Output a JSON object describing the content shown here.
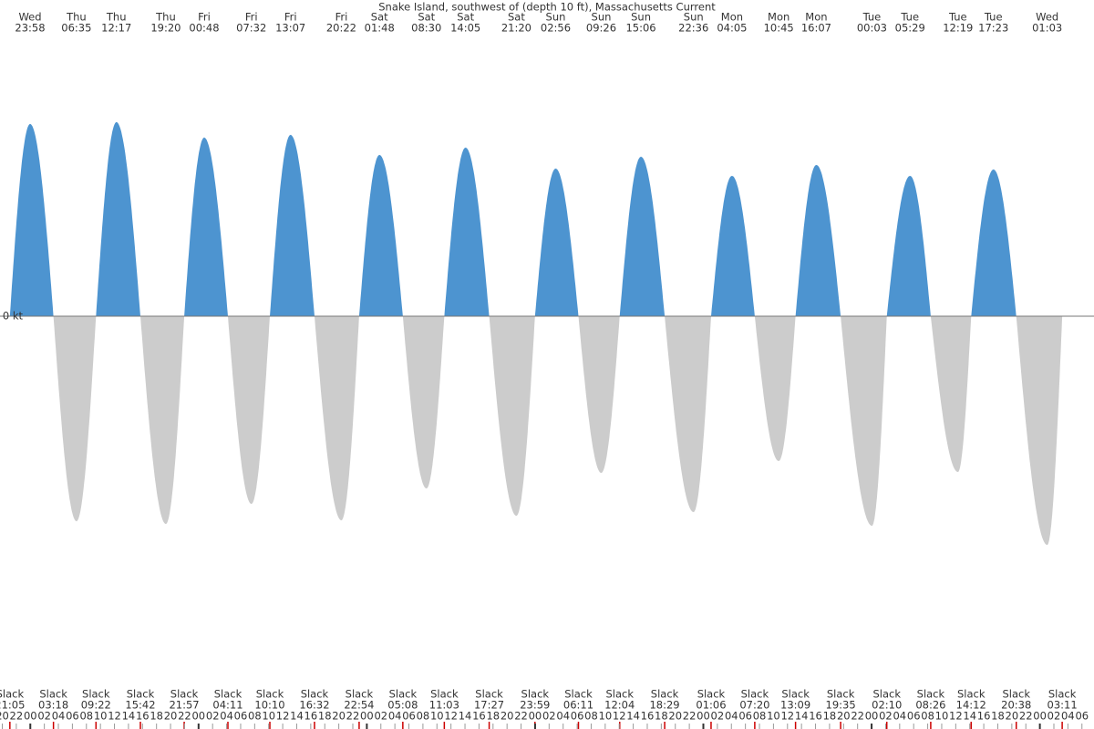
{
  "chart_data": {
    "type": "tide",
    "title": "Snake Island, southwest of (depth 10 ft), Massachusetts Current",
    "zero_label": "0 kt",
    "slack_label": "Slack",
    "ylim": [
      -4,
      3
    ],
    "flood_color": "#4d94d0",
    "ebb_color": "#cccccc",
    "events": [
      {
        "day": "Wed",
        "time": "23:58",
        "value": 2.11
      },
      {
        "day": "Thu",
        "time": "06:35",
        "value": -2.25
      },
      {
        "day": "Thu",
        "time": "12:17",
        "value": 2.13
      },
      {
        "day": "Thu",
        "time": "19:20",
        "value": -2.28
      },
      {
        "day": "Fri",
        "time": "00:48",
        "value": 1.96
      },
      {
        "day": "Fri",
        "time": "07:32",
        "value": -2.06
      },
      {
        "day": "Fri",
        "time": "13:07",
        "value": 1.99
      },
      {
        "day": "Fri",
        "time": "20:22",
        "value": -2.24
      },
      {
        "day": "Sat",
        "time": "01:48",
        "value": 1.77
      },
      {
        "day": "Sat",
        "time": "08:30",
        "value": -1.89
      },
      {
        "day": "Sat",
        "time": "14:05",
        "value": 1.85
      },
      {
        "day": "Sat",
        "time": "21:20",
        "value": -2.19
      },
      {
        "day": "Sun",
        "time": "02:56",
        "value": 1.62
      },
      {
        "day": "Sun",
        "time": "09:26",
        "value": -1.72
      },
      {
        "day": "Sun",
        "time": "15:06",
        "value": 1.75
      },
      {
        "day": "Sun",
        "time": "22:36",
        "value": -2.15
      },
      {
        "day": "Mon",
        "time": "04:05",
        "value": 1.54
      },
      {
        "day": "Mon",
        "time": "10:45",
        "value": -1.59
      },
      {
        "day": "Mon",
        "time": "16:07",
        "value": 1.66
      },
      {
        "day": "Tue",
        "time": "00:03",
        "value": -2.3
      },
      {
        "day": "Tue",
        "time": "05:29",
        "value": 1.54
      },
      {
        "day": "Tue",
        "time": "12:19",
        "value": -1.71
      },
      {
        "day": "Tue",
        "time": "17:23",
        "value": 1.61
      },
      {
        "day": "Wed",
        "time": "01:03",
        "value": -2.51
      }
    ],
    "slacks": [
      "21:05",
      "03:18",
      "09:22",
      "15:42",
      "21:57",
      "04:11",
      "10:10",
      "16:32",
      "22:54",
      "05:08",
      "11:03",
      "17:27",
      "23:59",
      "06:11",
      "12:04",
      "18:29",
      "01:06",
      "07:20",
      "13:09",
      "19:35",
      "02:10",
      "08:26",
      "14:12",
      "20:38",
      "03:11"
    ],
    "hour_ticks": [
      "20",
      "22",
      "00",
      "02",
      "04",
      "06",
      "08",
      "10",
      "12",
      "14",
      "16",
      "18",
      "20",
      "22",
      "00",
      "02",
      "04",
      "06",
      "08",
      "10",
      "12",
      "14",
      "16",
      "18",
      "20",
      "22",
      "00",
      "02",
      "04",
      "06",
      "08",
      "10",
      "12",
      "14",
      "16",
      "18",
      "20",
      "22",
      "00",
      "02",
      "04",
      "06",
      "08",
      "10",
      "12",
      "14",
      "16",
      "18",
      "20",
      "22",
      "00",
      "02",
      "04",
      "06",
      "08",
      "10",
      "12",
      "14",
      "16",
      "18",
      "20",
      "22",
      "00",
      "02",
      "04",
      "06",
      "08",
      "10",
      "12",
      "14",
      "16",
      "18",
      "20",
      "22",
      "00",
      "02",
      "04",
      "06"
    ]
  }
}
